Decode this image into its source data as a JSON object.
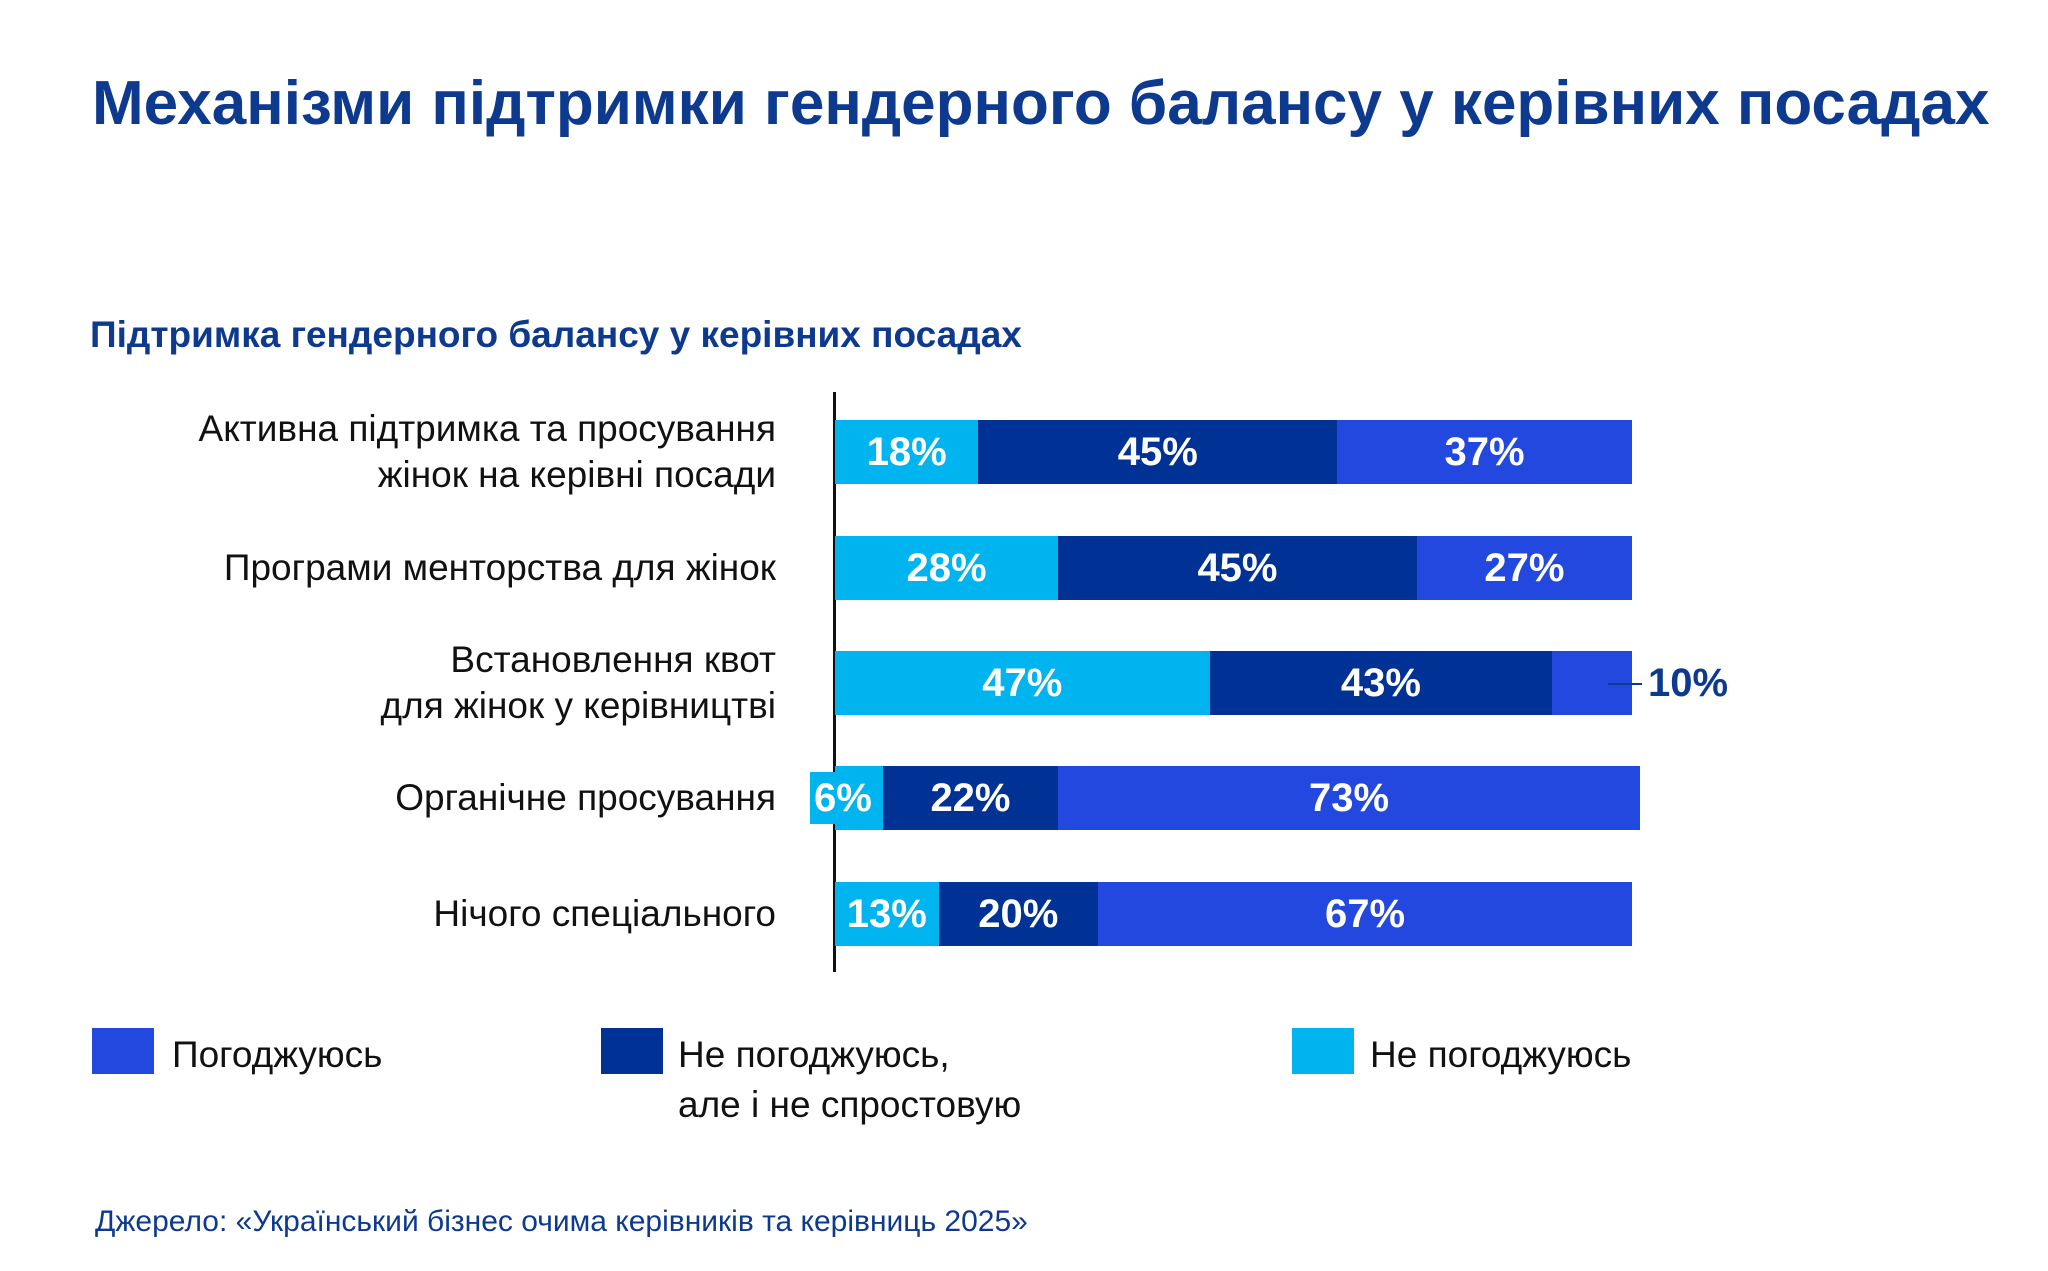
{
  "title": "Механізми підтримки гендерного балансу у керівних посадах",
  "colors": {
    "agree": "#2248E0",
    "neutral": "#003296",
    "disagree": "#00B4F0",
    "title": "#0D3A8F"
  },
  "chart_data": {
    "type": "bar",
    "orientation": "horizontal",
    "stacked": true,
    "title": "Підтримка гендерного балансу у керівних посадах",
    "categories": [
      [
        "Активна підтримка та просування",
        "жінок на керівні посади"
      ],
      [
        "Програми менторства для жінок"
      ],
      [
        "Встановлення квот",
        "для жінок у керівництві"
      ],
      [
        "Органічне просування"
      ],
      [
        "Нічого спеціального"
      ]
    ],
    "series": [
      {
        "name": "Не погоджуюсь",
        "color": "#00B4F0",
        "values": [
          18,
          28,
          47,
          6,
          13
        ],
        "labels": [
          "18%",
          "28%",
          "47%",
          "6%",
          "13%"
        ]
      },
      {
        "name": "Не погоджуюсь, але і не спростовую",
        "color": "#003296",
        "values": [
          45,
          45,
          43,
          22,
          20
        ],
        "labels": [
          "45%",
          "45%",
          "43%",
          "22%",
          "20%"
        ]
      },
      {
        "name": "Погоджуюсь",
        "color": "#2248E0",
        "values": [
          37,
          27,
          10,
          73,
          67
        ],
        "labels": [
          "37%",
          "27%",
          "10%",
          "73%",
          "67%"
        ]
      }
    ],
    "xlim": [
      0,
      100
    ],
    "grid": false,
    "legend": {
      "placement": "bottom",
      "items": [
        {
          "key": "agree",
          "lines": [
            "Погоджуюсь"
          ],
          "color": "#2248E0"
        },
        {
          "key": "neutral",
          "lines": [
            "Не погоджуюсь,",
            "але і не спростовую"
          ],
          "color": "#003296"
        },
        {
          "key": "disagree",
          "lines": [
            "Не погоджуюсь"
          ],
          "color": "#00B4F0"
        }
      ]
    }
  },
  "source": "Джерело: «Український бізнес очима керівників та керівниць 2025»"
}
